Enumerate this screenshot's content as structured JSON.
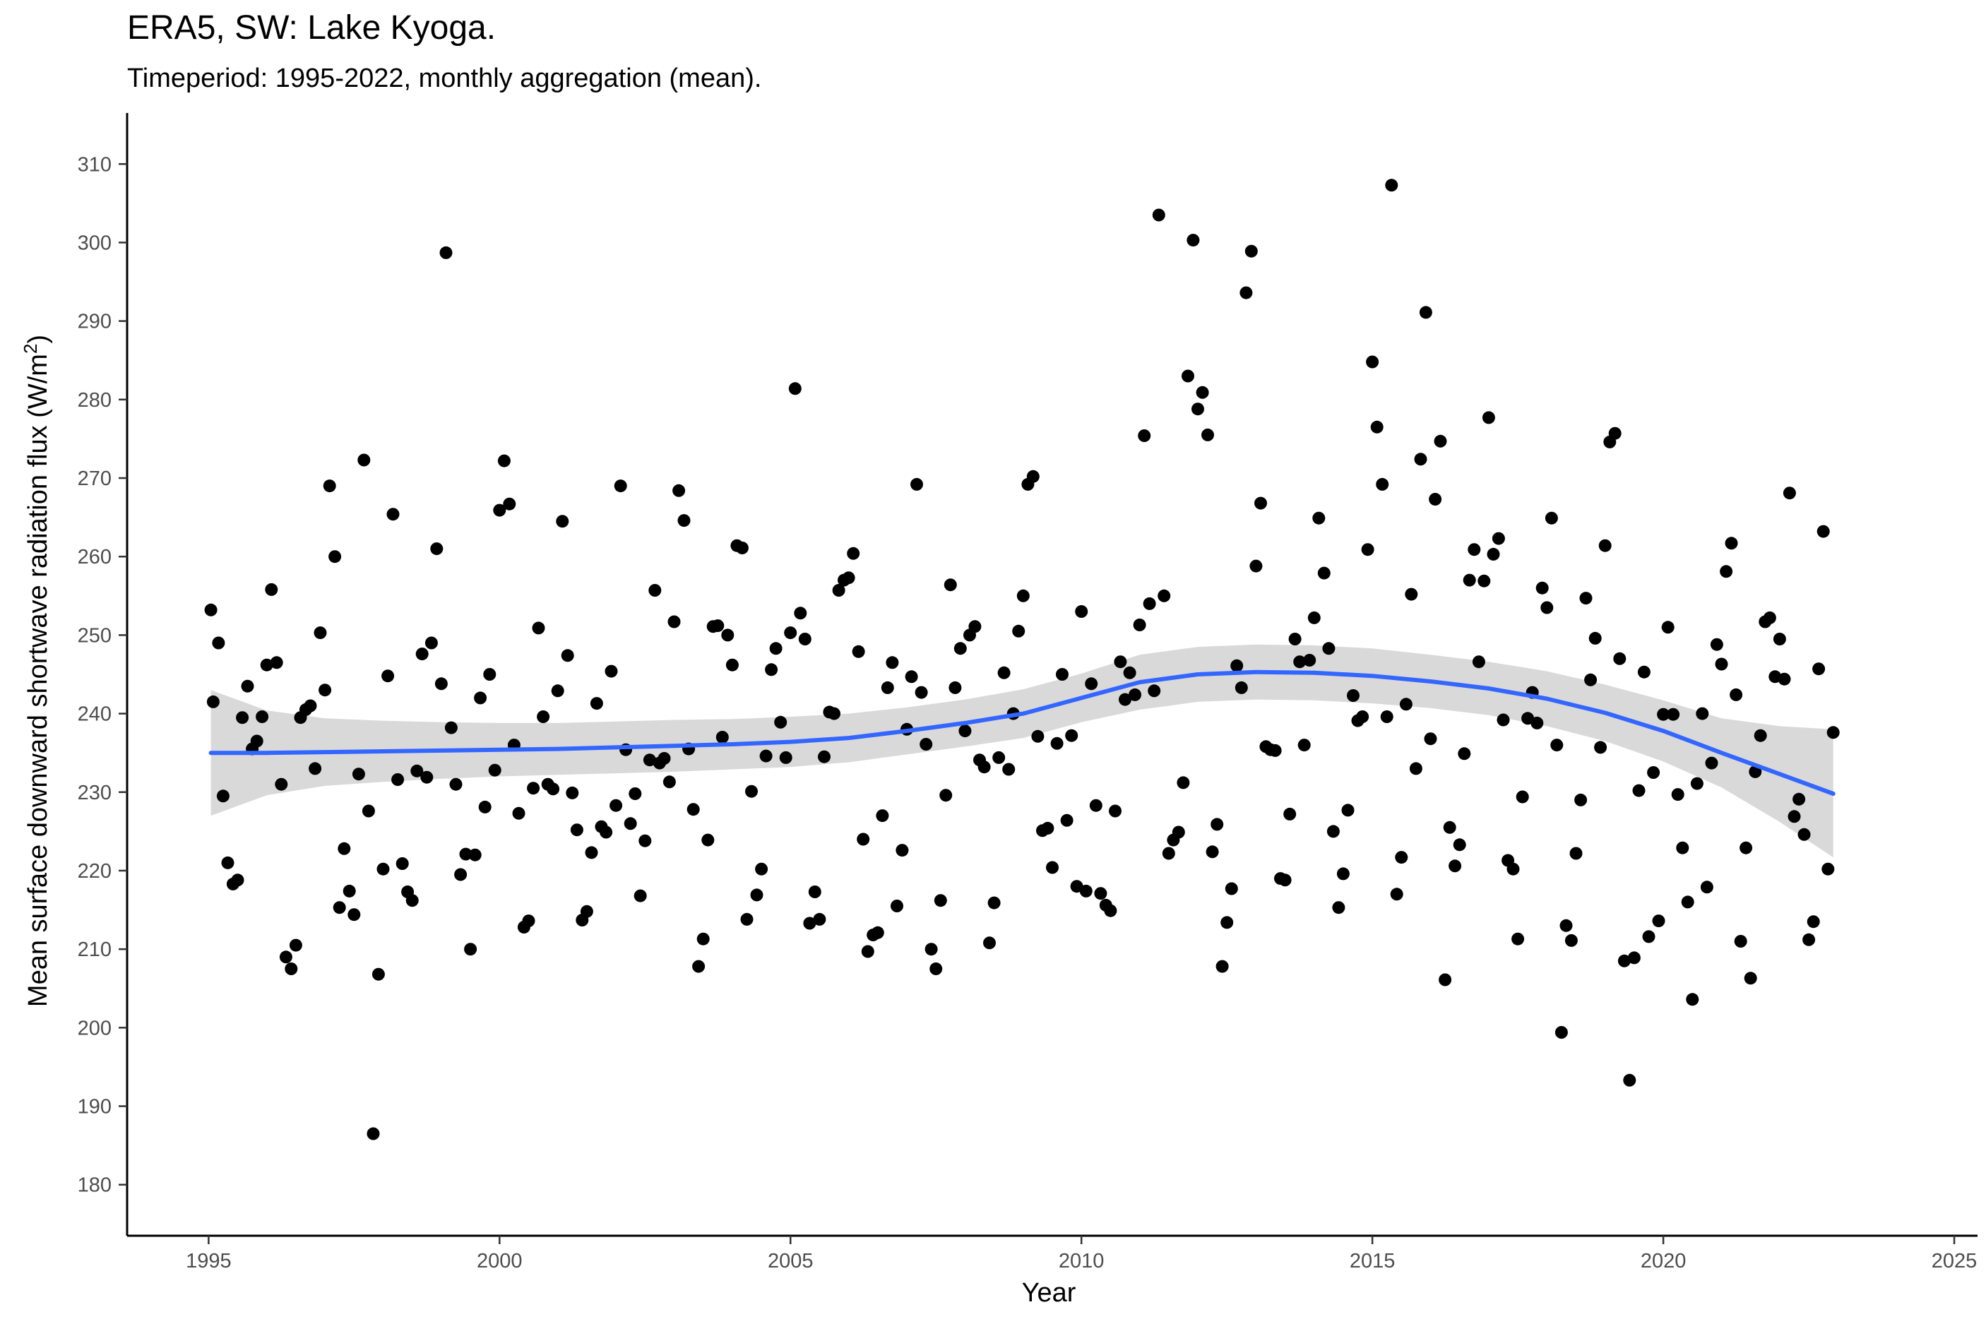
{
  "chart_data": {
    "type": "scatter",
    "title": "ERA5, SW: Lake Kyoga.",
    "subtitle": "Timeperiod: 1995-2022, monthly aggregation (mean).",
    "xlabel": "Year",
    "ylabel_main": "Mean surface downward shortwave radiation flux (W/m",
    "ylabel_sup": "2",
    "ylabel_end": ")",
    "xlim": [
      1993.6,
      2025.4
    ],
    "ylim": [
      173.5,
      316.5
    ],
    "xticks": [
      1995,
      2000,
      2005,
      2010,
      2015,
      2020,
      2025
    ],
    "yticks": [
      180,
      190,
      200,
      210,
      220,
      230,
      240,
      250,
      260,
      270,
      280,
      290,
      300,
      310
    ],
    "grid": false,
    "colors": {
      "points": "#000000",
      "smooth": "#3366ff",
      "band": "#d9d9d9"
    },
    "points": [
      [
        1995.04,
        253.2
      ],
      [
        1995.08,
        241.5
      ],
      [
        1995.17,
        249
      ],
      [
        1995.25,
        229.5
      ],
      [
        1995.33,
        221
      ],
      [
        1995.42,
        218.3
      ],
      [
        1995.5,
        218.8
      ],
      [
        1995.58,
        239.5
      ],
      [
        1995.67,
        243.5
      ],
      [
        1995.75,
        235.5
      ],
      [
        1995.83,
        236.5
      ],
      [
        1995.92,
        239.6
      ],
      [
        1996.0,
        246.2
      ],
      [
        1996.08,
        255.8
      ],
      [
        1996.17,
        246.5
      ],
      [
        1996.25,
        231
      ],
      [
        1996.33,
        209
      ],
      [
        1996.42,
        207.5
      ],
      [
        1996.5,
        210.5
      ],
      [
        1996.58,
        239.5
      ],
      [
        1996.67,
        240.5
      ],
      [
        1996.75,
        241
      ],
      [
        1996.83,
        233
      ],
      [
        1996.92,
        250.3
      ],
      [
        1997.0,
        243
      ],
      [
        1997.08,
        269
      ],
      [
        1997.17,
        260
      ],
      [
        1997.25,
        215.3
      ],
      [
        1997.33,
        222.8
      ],
      [
        1997.42,
        217.4
      ],
      [
        1997.5,
        214.4
      ],
      [
        1997.58,
        232.3
      ],
      [
        1997.67,
        272.3
      ],
      [
        1997.75,
        227.6
      ],
      [
        1997.83,
        186.5
      ],
      [
        1997.92,
        206.8
      ],
      [
        1998.0,
        220.2
      ],
      [
        1998.08,
        244.8
      ],
      [
        1998.17,
        265.4
      ],
      [
        1998.25,
        231.6
      ],
      [
        1998.33,
        220.9
      ],
      [
        1998.42,
        217.3
      ],
      [
        1998.5,
        216.2
      ],
      [
        1998.58,
        232.7
      ],
      [
        1998.67,
        247.6
      ],
      [
        1998.75,
        231.9
      ],
      [
        1998.83,
        249
      ],
      [
        1998.92,
        261
      ],
      [
        1999.0,
        243.8
      ],
      [
        1999.08,
        298.7
      ],
      [
        1999.17,
        238.2
      ],
      [
        1999.25,
        231
      ],
      [
        1999.33,
        219.5
      ],
      [
        1999.42,
        222.1
      ],
      [
        1999.5,
        210
      ],
      [
        1999.58,
        222
      ],
      [
        1999.67,
        242
      ],
      [
        1999.75,
        228.1
      ],
      [
        1999.83,
        245
      ],
      [
        1999.92,
        232.8
      ],
      [
        2000.0,
        265.9
      ],
      [
        2000.08,
        272.2
      ],
      [
        2000.17,
        266.7
      ],
      [
        2000.25,
        236
      ],
      [
        2000.33,
        227.3
      ],
      [
        2000.42,
        212.8
      ],
      [
        2000.5,
        213.6
      ],
      [
        2000.58,
        230.5
      ],
      [
        2000.67,
        250.9
      ],
      [
        2000.75,
        239.6
      ],
      [
        2000.83,
        231
      ],
      [
        2000.92,
        230.4
      ],
      [
        2001.0,
        242.9
      ],
      [
        2001.08,
        264.5
      ],
      [
        2001.17,
        247.4
      ],
      [
        2001.25,
        229.9
      ],
      [
        2001.33,
        225.2
      ],
      [
        2001.42,
        213.7
      ],
      [
        2001.5,
        214.8
      ],
      [
        2001.58,
        222.3
      ],
      [
        2001.67,
        241.3
      ],
      [
        2001.75,
        225.6
      ],
      [
        2001.83,
        224.9
      ],
      [
        2001.92,
        245.4
      ],
      [
        2002.0,
        228.3
      ],
      [
        2002.08,
        269
      ],
      [
        2002.17,
        235.4
      ],
      [
        2002.25,
        226
      ],
      [
        2002.33,
        229.8
      ],
      [
        2002.42,
        216.8
      ],
      [
        2002.5,
        223.8
      ],
      [
        2002.58,
        234.1
      ],
      [
        2002.67,
        255.7
      ],
      [
        2002.75,
        233.7
      ],
      [
        2002.83,
        234.3
      ],
      [
        2002.92,
        231.3
      ],
      [
        2003.0,
        251.7
      ],
      [
        2003.08,
        268.4
      ],
      [
        2003.17,
        264.6
      ],
      [
        2003.25,
        235.5
      ],
      [
        2003.33,
        227.8
      ],
      [
        2003.42,
        207.8
      ],
      [
        2003.5,
        211.3
      ],
      [
        2003.58,
        223.9
      ],
      [
        2003.67,
        251.1
      ],
      [
        2003.75,
        251.2
      ],
      [
        2003.83,
        237
      ],
      [
        2003.92,
        250
      ],
      [
        2004.0,
        246.2
      ],
      [
        2004.08,
        261.4
      ],
      [
        2004.17,
        261.1
      ],
      [
        2004.25,
        213.8
      ],
      [
        2004.33,
        230.1
      ],
      [
        2004.42,
        216.9
      ],
      [
        2004.5,
        220.2
      ],
      [
        2004.58,
        234.6
      ],
      [
        2004.67,
        245.6
      ],
      [
        2004.75,
        248.3
      ],
      [
        2004.83,
        238.9
      ],
      [
        2004.92,
        234.4
      ],
      [
        2005.0,
        250.3
      ],
      [
        2005.08,
        281.4
      ],
      [
        2005.17,
        252.8
      ],
      [
        2005.25,
        249.5
      ],
      [
        2005.33,
        213.3
      ],
      [
        2005.42,
        217.3
      ],
      [
        2005.5,
        213.8
      ],
      [
        2005.58,
        234.5
      ],
      [
        2005.67,
        240.2
      ],
      [
        2005.75,
        240
      ],
      [
        2005.83,
        255.7
      ],
      [
        2005.92,
        257
      ],
      [
        2006.0,
        257.3
      ],
      [
        2006.08,
        260.4
      ],
      [
        2006.17,
        247.9
      ],
      [
        2006.25,
        224
      ],
      [
        2006.33,
        209.7
      ],
      [
        2006.42,
        211.8
      ],
      [
        2006.5,
        212.1
      ],
      [
        2006.58,
        227
      ],
      [
        2006.67,
        243.3
      ],
      [
        2006.75,
        246.5
      ],
      [
        2006.83,
        215.5
      ],
      [
        2006.92,
        222.6
      ],
      [
        2007.0,
        238
      ],
      [
        2007.08,
        244.7
      ],
      [
        2007.17,
        269.2
      ],
      [
        2007.25,
        242.7
      ],
      [
        2007.33,
        236.1
      ],
      [
        2007.42,
        210
      ],
      [
        2007.5,
        207.5
      ],
      [
        2007.58,
        216.2
      ],
      [
        2007.67,
        229.6
      ],
      [
        2007.75,
        256.4
      ],
      [
        2007.83,
        243.3
      ],
      [
        2007.92,
        248.3
      ],
      [
        2008.0,
        237.8
      ],
      [
        2008.08,
        250
      ],
      [
        2008.17,
        251.1
      ],
      [
        2008.25,
        234.1
      ],
      [
        2008.33,
        233.2
      ],
      [
        2008.42,
        210.8
      ],
      [
        2008.5,
        215.9
      ],
      [
        2008.58,
        234.4
      ],
      [
        2008.67,
        245.2
      ],
      [
        2008.75,
        232.9
      ],
      [
        2008.83,
        240
      ],
      [
        2008.92,
        250.5
      ],
      [
        2009.0,
        255
      ],
      [
        2009.08,
        269.2
      ],
      [
        2009.17,
        270.2
      ],
      [
        2009.25,
        237.1
      ],
      [
        2009.33,
        225.1
      ],
      [
        2009.42,
        225.4
      ],
      [
        2009.5,
        220.4
      ],
      [
        2009.58,
        236.2
      ],
      [
        2009.67,
        245
      ],
      [
        2009.75,
        226.4
      ],
      [
        2009.83,
        237.2
      ],
      [
        2009.92,
        218
      ],
      [
        2010.0,
        253
      ],
      [
        2010.08,
        217.4
      ],
      [
        2010.17,
        243.8
      ],
      [
        2010.25,
        228.3
      ],
      [
        2010.33,
        217.1
      ],
      [
        2010.42,
        215.6
      ],
      [
        2010.5,
        214.9
      ],
      [
        2010.58,
        227.6
      ],
      [
        2010.67,
        246.6
      ],
      [
        2010.75,
        241.8
      ],
      [
        2010.83,
        245.2
      ],
      [
        2010.92,
        242.4
      ],
      [
        2011.0,
        251.3
      ],
      [
        2011.08,
        275.4
      ],
      [
        2011.17,
        254
      ],
      [
        2011.25,
        242.9
      ],
      [
        2011.33,
        303.5
      ],
      [
        2011.42,
        255
      ],
      [
        2011.5,
        222.2
      ],
      [
        2011.58,
        223.9
      ],
      [
        2011.67,
        224.9
      ],
      [
        2011.75,
        231.2
      ],
      [
        2011.83,
        283
      ],
      [
        2011.92,
        300.3
      ],
      [
        2012.0,
        278.8
      ],
      [
        2012.08,
        280.9
      ],
      [
        2012.17,
        275.5
      ],
      [
        2012.25,
        222.4
      ],
      [
        2012.33,
        225.9
      ],
      [
        2012.42,
        207.8
      ],
      [
        2012.5,
        213.4
      ],
      [
        2012.58,
        217.7
      ],
      [
        2012.67,
        246.1
      ],
      [
        2012.75,
        243.3
      ],
      [
        2012.83,
        293.6
      ],
      [
        2012.92,
        298.9
      ],
      [
        2013.0,
        258.8
      ],
      [
        2013.08,
        266.8
      ],
      [
        2013.17,
        235.8
      ],
      [
        2013.25,
        235.4
      ],
      [
        2013.33,
        235.3
      ],
      [
        2013.42,
        219
      ],
      [
        2013.5,
        218.8
      ],
      [
        2013.58,
        227.2
      ],
      [
        2013.67,
        249.5
      ],
      [
        2013.75,
        246.6
      ],
      [
        2013.83,
        236
      ],
      [
        2013.92,
        246.8
      ],
      [
        2014.0,
        252.2
      ],
      [
        2014.08,
        264.9
      ],
      [
        2014.17,
        257.9
      ],
      [
        2014.25,
        248.3
      ],
      [
        2014.33,
        225
      ],
      [
        2014.42,
        215.3
      ],
      [
        2014.5,
        219.6
      ],
      [
        2014.58,
        227.7
      ],
      [
        2014.67,
        242.3
      ],
      [
        2014.75,
        239.1
      ],
      [
        2014.83,
        239.6
      ],
      [
        2014.92,
        260.9
      ],
      [
        2015.0,
        284.8
      ],
      [
        2015.08,
        276.5
      ],
      [
        2015.17,
        269.2
      ],
      [
        2015.25,
        239.6
      ],
      [
        2015.33,
        307.3
      ],
      [
        2015.42,
        217
      ],
      [
        2015.5,
        221.7
      ],
      [
        2015.58,
        241.2
      ],
      [
        2015.67,
        255.2
      ],
      [
        2015.75,
        233
      ],
      [
        2015.83,
        272.4
      ],
      [
        2015.92,
        291.1
      ],
      [
        2016.0,
        236.8
      ],
      [
        2016.08,
        267.3
      ],
      [
        2016.17,
        274.7
      ],
      [
        2016.25,
        206.1
      ],
      [
        2016.33,
        225.5
      ],
      [
        2016.42,
        220.6
      ],
      [
        2016.5,
        223.3
      ],
      [
        2016.58,
        234.9
      ],
      [
        2016.67,
        257
      ],
      [
        2016.75,
        260.9
      ],
      [
        2016.83,
        246.6
      ],
      [
        2016.92,
        256.9
      ],
      [
        2017.0,
        277.7
      ],
      [
        2017.08,
        260.3
      ],
      [
        2017.17,
        262.3
      ],
      [
        2017.25,
        239.2
      ],
      [
        2017.33,
        221.3
      ],
      [
        2017.42,
        220.2
      ],
      [
        2017.5,
        211.3
      ],
      [
        2017.58,
        229.4
      ],
      [
        2017.67,
        239.4
      ],
      [
        2017.75,
        242.7
      ],
      [
        2017.83,
        238.8
      ],
      [
        2017.92,
        256
      ],
      [
        2018.0,
        253.5
      ],
      [
        2018.08,
        264.9
      ],
      [
        2018.17,
        236
      ],
      [
        2018.25,
        199.4
      ],
      [
        2018.33,
        213
      ],
      [
        2018.42,
        211.1
      ],
      [
        2018.5,
        222.2
      ],
      [
        2018.58,
        229
      ],
      [
        2018.67,
        254.7
      ],
      [
        2018.75,
        244.3
      ],
      [
        2018.83,
        249.6
      ],
      [
        2018.92,
        235.7
      ],
      [
        2019.0,
        261.4
      ],
      [
        2019.08,
        274.6
      ],
      [
        2019.17,
        275.7
      ],
      [
        2019.25,
        247
      ],
      [
        2019.33,
        208.5
      ],
      [
        2019.42,
        193.3
      ],
      [
        2019.5,
        208.9
      ],
      [
        2019.58,
        230.2
      ],
      [
        2019.67,
        245.3
      ],
      [
        2019.75,
        211.6
      ],
      [
        2019.83,
        232.5
      ],
      [
        2019.92,
        213.6
      ],
      [
        2020.0,
        239.9
      ],
      [
        2020.08,
        251
      ],
      [
        2020.17,
        239.9
      ],
      [
        2020.25,
        229.7
      ],
      [
        2020.33,
        222.9
      ],
      [
        2020.42,
        216
      ],
      [
        2020.5,
        203.6
      ],
      [
        2020.58,
        231.1
      ],
      [
        2020.67,
        240
      ],
      [
        2020.75,
        217.9
      ],
      [
        2020.83,
        233.7
      ],
      [
        2020.92,
        248.8
      ],
      [
        2021.0,
        246.3
      ],
      [
        2021.08,
        258.1
      ],
      [
        2021.17,
        261.7
      ],
      [
        2021.25,
        242.4
      ],
      [
        2021.33,
        211
      ],
      [
        2021.42,
        222.9
      ],
      [
        2021.5,
        206.3
      ],
      [
        2021.58,
        232.6
      ],
      [
        2021.67,
        237.2
      ],
      [
        2021.75,
        251.7
      ],
      [
        2021.83,
        252.2
      ],
      [
        2021.92,
        244.7
      ],
      [
        2022.0,
        249.5
      ],
      [
        2022.08,
        244.4
      ],
      [
        2022.17,
        268.1
      ],
      [
        2022.25,
        226.9
      ],
      [
        2022.33,
        229.1
      ],
      [
        2022.42,
        224.6
      ],
      [
        2022.5,
        211.2
      ],
      [
        2022.58,
        213.5
      ],
      [
        2022.67,
        245.7
      ],
      [
        2022.75,
        263.2
      ],
      [
        2022.83,
        220.2
      ],
      [
        2022.92,
        237.6
      ]
    ],
    "smooth": [
      [
        1995.04,
        235.0,
        227.0,
        243.0
      ],
      [
        1996,
        235.0,
        229.6,
        240.4
      ],
      [
        1997,
        235.1,
        230.8,
        239.4
      ],
      [
        1998,
        235.2,
        231.3,
        239.1
      ],
      [
        1999,
        235.3,
        231.7,
        238.9
      ],
      [
        2000,
        235.4,
        232.0,
        238.8
      ],
      [
        2001,
        235.5,
        232.2,
        238.8
      ],
      [
        2002,
        235.7,
        232.4,
        239.0
      ],
      [
        2003,
        235.9,
        232.6,
        239.2
      ],
      [
        2004,
        236.1,
        232.9,
        239.3
      ],
      [
        2005,
        236.4,
        233.2,
        239.6
      ],
      [
        2006,
        236.9,
        233.8,
        240.0
      ],
      [
        2007,
        237.8,
        234.8,
        240.8
      ],
      [
        2008,
        238.8,
        235.8,
        241.8
      ],
      [
        2009,
        240.0,
        236.9,
        243.1
      ],
      [
        2010,
        242.0,
        238.9,
        245.1
      ],
      [
        2011,
        244.0,
        240.5,
        247.5
      ],
      [
        2012,
        245.0,
        241.5,
        248.5
      ],
      [
        2013,
        245.3,
        241.8,
        248.8
      ],
      [
        2014,
        245.2,
        241.7,
        248.7
      ],
      [
        2015,
        244.8,
        241.3,
        248.3
      ],
      [
        2016,
        244.1,
        240.7,
        247.5
      ],
      [
        2017,
        243.2,
        239.8,
        246.6
      ],
      [
        2018,
        241.9,
        238.4,
        245.4
      ],
      [
        2019,
        240.1,
        236.5,
        243.7
      ],
      [
        2020,
        237.8,
        233.9,
        241.7
      ],
      [
        2021,
        235.0,
        230.6,
        239.4
      ],
      [
        2022,
        232.3,
        226.2,
        238.4
      ],
      [
        2022.92,
        229.8,
        221.7,
        238.0
      ]
    ]
  }
}
